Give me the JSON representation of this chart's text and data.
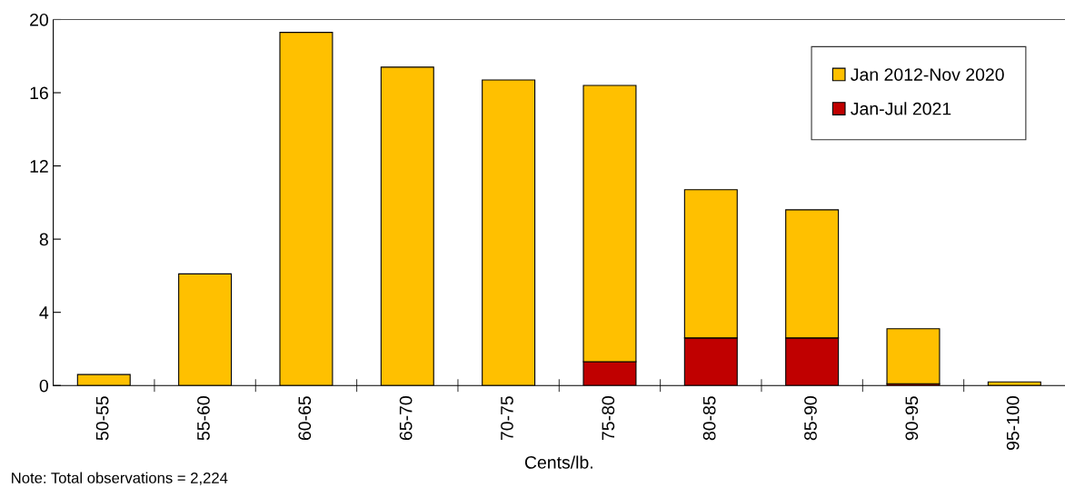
{
  "chart_data": {
    "type": "bar",
    "stacked": true,
    "xlabel": "Cents/lb.",
    "categories": [
      "50-55",
      "55-60",
      "60-65",
      "65-70",
      "70-75",
      "75-80",
      "80-85",
      "85-90",
      "90-95",
      "95-100"
    ],
    "series": [
      {
        "name": "Jan-Jul 2021",
        "color": "#c00000",
        "values": [
          0,
          0,
          0,
          0,
          0,
          1.3,
          2.6,
          2.6,
          0.1,
          0
        ]
      },
      {
        "name": "Jan 2012-Nov 2020",
        "color": "#ffc000",
        "values": [
          0.6,
          6.1,
          19.3,
          17.4,
          16.7,
          15.1,
          8.1,
          7.0,
          3.0,
          0.2
        ]
      }
    ],
    "ylim": [
      0,
      20
    ],
    "yticks": [
      0,
      4,
      8,
      12,
      16,
      20
    ],
    "grid": false,
    "legend": "top right",
    "annotations": [
      "Note: Total observations = 2,224"
    ]
  }
}
